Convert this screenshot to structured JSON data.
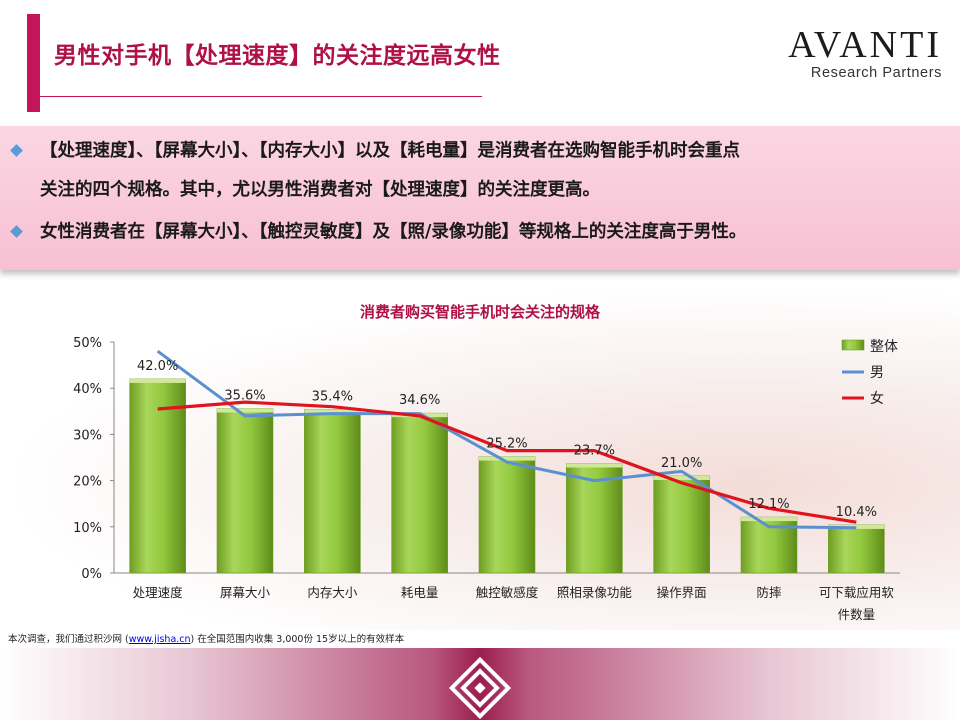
{
  "title": "男性对手机【处理速度】的关注度远高女性",
  "logo": {
    "main": "AVANTI",
    "sub": "Research Partners"
  },
  "bullets": [
    "【处理速度】、【屏幕大小】、【内存大小】以及【耗电量】是消费者在选购智能手机时会重点",
    "关注的四个规格。其中，尤以男性消费者对【处理速度】的关注度更高。",
    "女性消费者在【屏幕大小】、【触控灵敏度】及【照/录像功能】等规格上的关注度高于男性。"
  ],
  "chart_data": {
    "type": "bar",
    "title": "消费者购买智能手机时会关注的规格",
    "categories": [
      "处理速度",
      "屏幕大小",
      "内存大小",
      "耗电量",
      "触控敏感度",
      "照相录像功能",
      "操作界面",
      "防摔",
      "可下载应用软件数量"
    ],
    "category_lines": [
      [
        "处理速度"
      ],
      [
        "屏幕大小"
      ],
      [
        "内存大小"
      ],
      [
        "耗电量"
      ],
      [
        "触控敏感度"
      ],
      [
        "照相录像功能"
      ],
      [
        "操作界面"
      ],
      [
        "防摔"
      ],
      [
        "可下载应用软",
        "件数量"
      ]
    ],
    "series": [
      {
        "name": "整体",
        "type": "bar",
        "color": "#92c83e",
        "values": [
          42.0,
          35.6,
          35.4,
          34.6,
          25.2,
          23.7,
          21.0,
          12.1,
          10.4
        ]
      },
      {
        "name": "男",
        "type": "line",
        "color": "#5b8fd0",
        "values": [
          48,
          34,
          34.5,
          34.5,
          24,
          20,
          22,
          10,
          9.8
        ]
      },
      {
        "name": "女",
        "type": "line",
        "color": "#e0141e",
        "values": [
          35.5,
          37,
          36,
          34,
          26.5,
          26.5,
          19.5,
          14,
          11
        ]
      }
    ],
    "data_labels": [
      "42.0%",
      "35.6%",
      "35.4%",
      "34.6%",
      "25.2%",
      "23.7%",
      "21.0%",
      "12.1%",
      "10.4%"
    ],
    "y_ticks": [
      "0%",
      "10%",
      "20%",
      "30%",
      "40%",
      "50%"
    ],
    "ylim": [
      0,
      50
    ],
    "legend_position": "top-right"
  },
  "footnote": {
    "before": "本次调查，我们通过积沙网 (",
    "link": "www.jisha.cn",
    "after": ") 在全国范围内收集 3,000份 15岁以上的有效样本"
  }
}
